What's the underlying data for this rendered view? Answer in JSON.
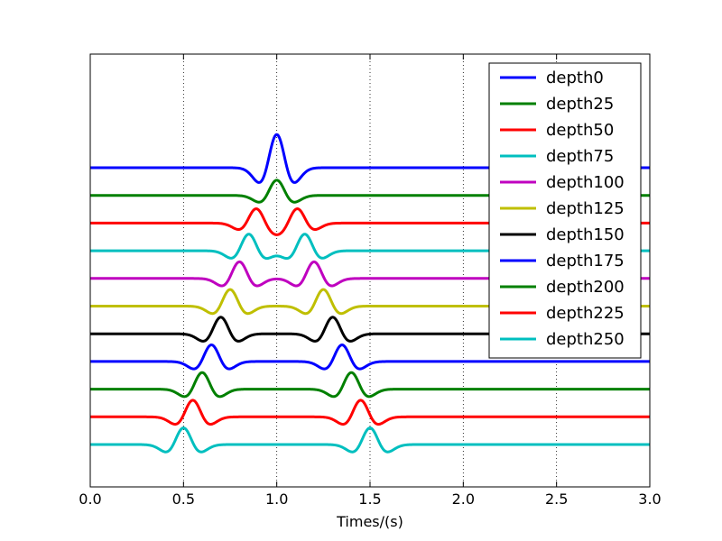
{
  "chart_data": {
    "type": "line",
    "title": "",
    "xlabel": "Times/(s)",
    "ylabel": "",
    "xlim": [
      0.0,
      3.0
    ],
    "y_tick_labels": "none",
    "grid": "vertical dotted",
    "legend_position": "top-right",
    "x_ticks": [
      "0.0",
      "0.5",
      "1.0",
      "1.5",
      "2.0",
      "2.5",
      "3.0"
    ],
    "trace_spacing": 1,
    "series": [
      {
        "name": "depth0",
        "color": "#0000ff",
        "baseline": 0,
        "arrivals": [
          {
            "t": 1.0,
            "amp": 1.2
          }
        ]
      },
      {
        "name": "depth25",
        "color": "#008000",
        "baseline": -1,
        "arrivals": [
          {
            "t": 1.0,
            "amp": 0.55
          }
        ]
      },
      {
        "name": "depth50",
        "color": "#ff0000",
        "baseline": -2,
        "arrivals": [
          {
            "t": 0.89,
            "amp": 0.52
          },
          {
            "t": 1.11,
            "amp": 0.52
          }
        ]
      },
      {
        "name": "depth75",
        "color": "#00bfbf",
        "baseline": -3,
        "arrivals": [
          {
            "t": 0.85,
            "amp": 0.6
          },
          {
            "t": 1.15,
            "amp": 0.6
          }
        ]
      },
      {
        "name": "depth100",
        "color": "#bf00bf",
        "baseline": -4,
        "arrivals": [
          {
            "t": 0.8,
            "amp": 0.6
          },
          {
            "t": 1.2,
            "amp": 0.6
          }
        ]
      },
      {
        "name": "depth125",
        "color": "#bfbf00",
        "baseline": -5,
        "arrivals": [
          {
            "t": 0.75,
            "amp": 0.6
          },
          {
            "t": 1.25,
            "amp": 0.6
          }
        ]
      },
      {
        "name": "depth150",
        "color": "#000000",
        "baseline": -6,
        "arrivals": [
          {
            "t": 0.7,
            "amp": 0.6
          },
          {
            "t": 1.3,
            "amp": 0.6
          }
        ]
      },
      {
        "name": "depth175",
        "color": "#0000ff",
        "baseline": -7,
        "arrivals": [
          {
            "t": 0.65,
            "amp": 0.6
          },
          {
            "t": 1.35,
            "amp": 0.6
          }
        ]
      },
      {
        "name": "depth200",
        "color": "#008000",
        "baseline": -8,
        "arrivals": [
          {
            "t": 0.6,
            "amp": 0.6
          },
          {
            "t": 1.4,
            "amp": 0.6
          }
        ]
      },
      {
        "name": "depth225",
        "color": "#ff0000",
        "baseline": -9,
        "arrivals": [
          {
            "t": 0.55,
            "amp": 0.6
          },
          {
            "t": 1.45,
            "amp": 0.6
          }
        ]
      },
      {
        "name": "depth250",
        "color": "#00bfbf",
        "baseline": -10,
        "arrivals": [
          {
            "t": 0.5,
            "amp": 0.6
          },
          {
            "t": 1.5,
            "amp": 0.6
          }
        ]
      }
    ]
  }
}
